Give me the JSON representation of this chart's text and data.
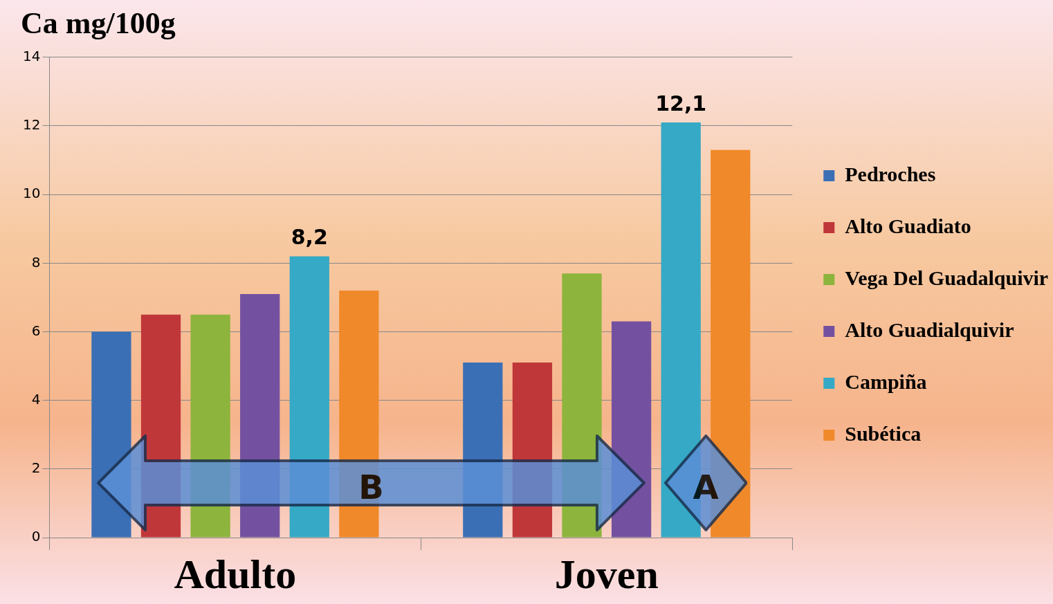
{
  "chart_data": {
    "type": "bar",
    "title": "Ca mg/100g",
    "categories": [
      "Adulto",
      "Joven"
    ],
    "series": [
      {
        "name": "Pedroches",
        "color": "#3a6fb5",
        "values": [
          6.0,
          5.1
        ]
      },
      {
        "name": "Alto Guadiato",
        "color": "#c0373a",
        "values": [
          6.5,
          5.1
        ]
      },
      {
        "name": "Vega Del Guadalquivir",
        "color": "#8db43c",
        "values": [
          6.5,
          7.7
        ]
      },
      {
        "name": "Alto Guadialquivir",
        "color": "#7451a0",
        "values": [
          7.1,
          6.3
        ]
      },
      {
        "name": "Campiña",
        "color": "#35a9c6",
        "values": [
          8.2,
          12.1
        ],
        "value_labels": [
          "8,2",
          "12,1"
        ]
      },
      {
        "name": "Subética",
        "color": "#f0892a",
        "values": [
          7.2,
          11.3
        ]
      }
    ],
    "ylim": [
      0,
      14
    ],
    "yticks": [
      0,
      2,
      4,
      6,
      8,
      10,
      12,
      14
    ],
    "grid": "y",
    "legend": "right",
    "annotations": [
      "B",
      "A"
    ]
  }
}
